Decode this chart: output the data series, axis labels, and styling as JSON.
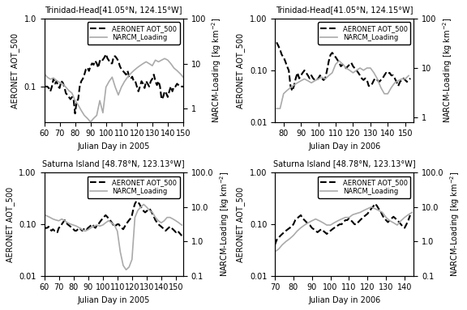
{
  "panels": [
    {
      "title": "Trinidad-Head[41.05°N, 124.15°W]",
      "xlabel": "Julian Day in 2005",
      "xlim": [
        60,
        150
      ],
      "xticks": [
        60,
        70,
        80,
        90,
        100,
        110,
        120,
        130,
        140,
        150
      ],
      "left_ylim": [
        0.03,
        1.0
      ],
      "right_ylim": [
        0.5,
        100
      ],
      "left_yticks": [
        0.1,
        1.0
      ],
      "right_yticks": [
        1,
        10,
        100
      ],
      "aot_x": [
        60,
        62,
        63,
        64,
        65,
        66,
        67,
        68,
        69,
        70,
        71,
        72,
        73,
        74,
        75,
        76,
        77,
        78,
        79,
        80,
        81,
        82,
        83,
        84,
        85,
        86,
        87,
        88,
        89,
        90,
        91,
        92,
        93,
        94,
        95,
        96,
        97,
        98,
        99,
        100,
        101,
        102,
        103,
        104,
        105,
        106,
        107,
        108,
        109,
        110,
        111,
        112,
        113,
        114,
        115,
        116,
        117,
        118,
        119,
        120,
        121,
        122,
        123,
        124,
        125,
        126,
        127,
        128,
        129,
        130,
        131,
        132,
        133,
        134,
        135,
        136,
        137,
        138,
        139,
        140,
        141,
        142,
        143,
        144,
        145,
        146,
        147,
        148,
        149,
        150
      ],
      "aot_y": [
        0.1,
        0.1,
        0.095,
        0.085,
        0.1,
        0.13,
        0.11,
        0.12,
        0.1,
        0.095,
        0.12,
        0.115,
        0.1,
        0.08,
        0.075,
        0.07,
        0.065,
        0.07,
        0.065,
        0.04,
        0.06,
        0.065,
        0.1,
        0.12,
        0.13,
        0.15,
        0.18,
        0.19,
        0.17,
        0.2,
        0.22,
        0.21,
        0.24,
        0.22,
        0.19,
        0.24,
        0.23,
        0.25,
        0.27,
        0.3,
        0.26,
        0.24,
        0.22,
        0.22,
        0.28,
        0.28,
        0.26,
        0.24,
        0.2,
        0.18,
        0.17,
        0.16,
        0.15,
        0.17,
        0.14,
        0.13,
        0.14,
        0.12,
        0.12,
        0.1,
        0.085,
        0.1,
        0.12,
        0.11,
        0.095,
        0.12,
        0.11,
        0.1,
        0.12,
        0.13,
        0.15,
        0.12,
        0.105,
        0.12,
        0.1,
        0.065,
        0.07,
        0.085,
        0.08,
        0.07,
        0.085,
        0.1,
        0.085,
        0.1,
        0.1,
        0.11,
        0.105,
        0.1,
        0.1,
        0.1
      ],
      "narc_x": [
        60,
        62,
        64,
        66,
        68,
        70,
        72,
        74,
        76,
        78,
        80,
        82,
        84,
        86,
        88,
        90,
        92,
        94,
        96,
        98,
        100,
        102,
        104,
        106,
        108,
        110,
        112,
        114,
        116,
        118,
        120,
        122,
        124,
        126,
        128,
        130,
        132,
        134,
        136,
        138,
        140,
        142,
        144,
        146,
        148,
        150
      ],
      "narc_y": [
        6,
        5,
        4.5,
        4.8,
        4.2,
        3.8,
        3.5,
        3.0,
        2.5,
        2.2,
        1.5,
        1.2,
        0.9,
        0.7,
        0.6,
        0.5,
        0.6,
        0.7,
        1.5,
        0.8,
        3,
        4,
        5,
        3,
        2,
        3,
        4,
        5,
        6,
        7,
        8,
        9,
        10,
        11,
        10,
        9,
        12,
        11,
        12,
        13,
        12,
        10,
        8,
        7,
        6,
        5
      ]
    },
    {
      "title": "Trinidad-Head[41.05°N, 124.15°W]",
      "xlabel": "Julian Day in 2006",
      "xlim": [
        75,
        155
      ],
      "xticks": [
        80,
        90,
        100,
        110,
        120,
        130,
        140,
        150
      ],
      "left_ylim": [
        0.01,
        1.0
      ],
      "right_ylim": [
        0.8,
        100
      ],
      "left_yticks": [
        0.01,
        0.1,
        1.0
      ],
      "right_yticks": [
        1,
        10,
        100
      ],
      "aot_x": [
        76,
        77,
        78,
        79,
        80,
        81,
        82,
        83,
        84,
        85,
        86,
        87,
        88,
        89,
        90,
        91,
        92,
        93,
        94,
        95,
        96,
        97,
        98,
        99,
        100,
        101,
        102,
        103,
        104,
        105,
        106,
        107,
        108,
        109,
        110,
        111,
        112,
        113,
        114,
        115,
        116,
        117,
        118,
        119,
        120,
        121,
        122,
        123,
        124,
        125,
        126,
        127,
        128,
        129,
        130,
        131,
        132,
        133,
        134,
        135,
        136,
        137,
        138,
        139,
        140,
        141,
        142,
        143,
        144,
        145,
        146,
        147,
        148,
        149,
        150,
        151,
        152,
        153
      ],
      "aot_y": [
        0.35,
        0.3,
        0.25,
        0.2,
        0.18,
        0.15,
        0.12,
        0.1,
        0.05,
        0.04,
        0.05,
        0.07,
        0.09,
        0.07,
        0.08,
        0.09,
        0.1,
        0.09,
        0.08,
        0.07,
        0.08,
        0.07,
        0.065,
        0.065,
        0.07,
        0.08,
        0.07,
        0.065,
        0.07,
        0.1,
        0.15,
        0.2,
        0.22,
        0.2,
        0.18,
        0.16,
        0.14,
        0.12,
        0.13,
        0.12,
        0.11,
        0.12,
        0.13,
        0.14,
        0.12,
        0.11,
        0.1,
        0.09,
        0.08,
        0.07,
        0.065,
        0.07,
        0.065,
        0.05,
        0.05,
        0.055,
        0.065,
        0.07,
        0.065,
        0.06,
        0.065,
        0.07,
        0.08,
        0.09,
        0.085,
        0.09,
        0.08,
        0.08,
        0.07,
        0.06,
        0.05,
        0.06,
        0.065,
        0.07,
        0.065,
        0.06,
        0.065,
        0.07
      ],
      "narc_x": [
        76,
        78,
        80,
        82,
        84,
        86,
        88,
        90,
        92,
        94,
        96,
        98,
        100,
        102,
        104,
        106,
        108,
        110,
        112,
        114,
        116,
        118,
        120,
        122,
        124,
        126,
        128,
        130,
        132,
        134,
        136,
        138,
        140,
        142,
        144,
        146,
        148,
        150,
        152
      ],
      "narc_y": [
        1.5,
        1.5,
        3,
        3.5,
        4,
        4.5,
        5,
        5.5,
        6,
        5.5,
        5,
        5.5,
        6,
        6.5,
        6,
        7,
        8,
        12,
        14,
        12,
        10,
        9,
        8,
        9,
        10,
        9,
        10,
        10,
        8,
        6,
        4,
        3,
        3,
        4,
        5,
        5.5,
        6,
        6,
        7
      ]
    },
    {
      "title": "Saturna Island [48.78°N, 123.13°W]",
      "xlabel": "Julian Day in 2005",
      "xlim": [
        60,
        155
      ],
      "xticks": [
        60,
        70,
        80,
        90,
        100,
        110,
        120,
        130,
        140,
        150
      ],
      "left_ylim": [
        0.01,
        1.0
      ],
      "right_ylim": [
        0.1,
        100
      ],
      "left_yticks": [
        0.01,
        0.1,
        1.0
      ],
      "right_yticks": [
        0.1,
        1,
        10,
        100
      ],
      "aot_x": [
        60,
        61,
        62,
        63,
        64,
        65,
        66,
        67,
        68,
        69,
        70,
        71,
        72,
        73,
        74,
        75,
        76,
        77,
        78,
        79,
        80,
        81,
        82,
        83,
        84,
        85,
        86,
        87,
        88,
        89,
        90,
        91,
        92,
        93,
        94,
        95,
        96,
        97,
        98,
        99,
        100,
        101,
        102,
        103,
        104,
        105,
        106,
        107,
        108,
        109,
        110,
        111,
        112,
        113,
        114,
        115,
        116,
        117,
        118,
        119,
        120,
        121,
        122,
        123,
        124,
        125,
        126,
        127,
        128,
        129,
        130,
        131,
        132,
        133,
        134,
        135,
        136,
        137,
        138,
        139,
        140,
        141,
        142,
        143,
        144,
        145,
        146,
        147,
        148,
        149,
        150,
        151,
        152,
        153,
        154
      ],
      "aot_y": [
        0.08,
        0.085,
        0.085,
        0.09,
        0.08,
        0.075,
        0.08,
        0.075,
        0.075,
        0.07,
        0.085,
        0.09,
        0.1,
        0.11,
        0.12,
        0.11,
        0.1,
        0.095,
        0.09,
        0.085,
        0.08,
        0.075,
        0.075,
        0.08,
        0.085,
        0.08,
        0.075,
        0.08,
        0.085,
        0.08,
        0.085,
        0.09,
        0.095,
        0.1,
        0.09,
        0.085,
        0.095,
        0.1,
        0.11,
        0.12,
        0.13,
        0.14,
        0.15,
        0.14,
        0.13,
        0.12,
        0.11,
        0.1,
        0.09,
        0.095,
        0.1,
        0.1,
        0.09,
        0.085,
        0.08,
        0.09,
        0.1,
        0.11,
        0.12,
        0.13,
        0.15,
        0.2,
        0.25,
        0.28,
        0.27,
        0.25,
        0.22,
        0.2,
        0.18,
        0.17,
        0.18,
        0.19,
        0.2,
        0.18,
        0.16,
        0.14,
        0.12,
        0.11,
        0.1,
        0.095,
        0.09,
        0.085,
        0.08,
        0.075,
        0.08,
        0.085,
        0.09,
        0.085,
        0.08,
        0.075,
        0.07,
        0.075,
        0.07,
        0.065,
        0.06
      ],
      "narc_x": [
        60,
        62,
        64,
        66,
        68,
        70,
        72,
        74,
        76,
        78,
        80,
        82,
        84,
        86,
        88,
        90,
        92,
        94,
        96,
        98,
        100,
        102,
        104,
        106,
        108,
        110,
        112,
        114,
        116,
        118,
        120,
        122,
        124,
        126,
        128,
        130,
        132,
        134,
        136,
        138,
        140,
        142,
        144,
        146,
        148,
        150,
        152,
        154
      ],
      "narc_y": [
        6,
        5.5,
        5,
        4.5,
        4.2,
        4,
        4.5,
        4,
        3.5,
        3.2,
        3,
        2.8,
        2.5,
        2.2,
        2,
        2.2,
        2.5,
        2.8,
        3,
        2.8,
        3,
        3.5,
        4,
        3.5,
        3,
        2,
        0.5,
        0.2,
        0.15,
        0.18,
        0.3,
        5,
        8,
        10,
        12,
        10,
        8,
        7,
        5,
        4,
        3.5,
        4,
        5,
        5,
        4.5,
        4,
        3.5,
        3
      ]
    },
    {
      "title": "Saturna Island [48.78°N, 123.13°W]",
      "xlabel": "Julian Day in 2006",
      "xlim": [
        70,
        145
      ],
      "xticks": [
        70,
        80,
        90,
        100,
        110,
        120,
        130,
        140
      ],
      "left_ylim": [
        0.01,
        1.0
      ],
      "right_ylim": [
        0.1,
        100
      ],
      "left_yticks": [
        0.01,
        0.1,
        1.0
      ],
      "right_yticks": [
        0.1,
        1,
        10,
        100
      ],
      "aot_x": [
        70,
        71,
        72,
        73,
        74,
        75,
        76,
        77,
        78,
        79,
        80,
        81,
        82,
        83,
        84,
        85,
        86,
        87,
        88,
        89,
        90,
        91,
        92,
        93,
        94,
        95,
        96,
        97,
        98,
        99,
        100,
        101,
        102,
        103,
        104,
        105,
        106,
        107,
        108,
        109,
        110,
        111,
        112,
        113,
        114,
        115,
        116,
        117,
        118,
        119,
        120,
        121,
        122,
        123,
        124,
        125,
        126,
        127,
        128,
        129,
        130,
        131,
        132,
        133,
        134,
        135,
        136,
        137,
        138,
        139,
        140,
        141,
        142,
        143
      ],
      "aot_y": [
        0.04,
        0.05,
        0.055,
        0.06,
        0.065,
        0.07,
        0.075,
        0.08,
        0.085,
        0.09,
        0.1,
        0.12,
        0.13,
        0.14,
        0.15,
        0.13,
        0.12,
        0.11,
        0.1,
        0.095,
        0.085,
        0.08,
        0.075,
        0.07,
        0.075,
        0.08,
        0.075,
        0.07,
        0.065,
        0.07,
        0.075,
        0.08,
        0.085,
        0.09,
        0.095,
        0.1,
        0.1,
        0.11,
        0.12,
        0.12,
        0.13,
        0.12,
        0.11,
        0.1,
        0.1,
        0.11,
        0.12,
        0.13,
        0.14,
        0.15,
        0.16,
        0.18,
        0.2,
        0.22,
        0.25,
        0.23,
        0.2,
        0.18,
        0.15,
        0.13,
        0.12,
        0.11,
        0.12,
        0.13,
        0.14,
        0.13,
        0.12,
        0.11,
        0.1,
        0.09,
        0.085,
        0.1,
        0.12,
        0.15
      ],
      "narc_x": [
        70,
        72,
        74,
        76,
        78,
        80,
        82,
        84,
        86,
        88,
        90,
        92,
        94,
        96,
        98,
        100,
        102,
        104,
        106,
        108,
        110,
        112,
        114,
        116,
        118,
        120,
        122,
        124,
        126,
        128,
        130,
        132,
        134,
        136,
        138,
        140,
        142,
        144
      ],
      "narc_y": [
        0.5,
        0.6,
        0.8,
        1.0,
        1.2,
        1.5,
        2,
        2.5,
        3,
        3.5,
        4,
        4.5,
        4,
        3.5,
        3,
        3,
        3.5,
        4,
        4.5,
        5,
        5,
        6,
        6.5,
        7,
        8,
        9,
        10,
        9,
        8,
        7,
        5,
        4,
        3.5,
        3,
        4,
        5,
        6,
        7
      ]
    }
  ],
  "legend_labels": [
    "AERONET AOT_500",
    "NARCM_Loading"
  ],
  "aot_color": "black",
  "narc_color": "#aaaaaa",
  "aot_linestyle": "--",
  "narc_linestyle": "-",
  "aot_linewidth": 1.5,
  "narc_linewidth": 1.2,
  "left_ylabel": "AERONET AOT_500",
  "background_color": "white",
  "fontsize": 7
}
